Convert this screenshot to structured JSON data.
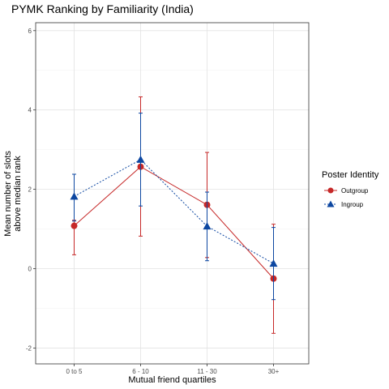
{
  "chart_data": {
    "type": "line",
    "title": "PYMK Ranking by Familiarity (India)",
    "xlabel": "Mutual friend quartiles",
    "ylabel_lines": [
      "Mean number of slots",
      "above median rank"
    ],
    "categories": [
      "0 to 5",
      "6 - 10",
      "11 - 30",
      "30+"
    ],
    "ylim": [
      -2.4,
      6.2
    ],
    "y_ticks": [
      -2,
      0,
      2,
      4,
      6
    ],
    "y_tick_labels": [
      "-2",
      "0",
      "2",
      "4",
      "6"
    ],
    "grid": true,
    "legend": {
      "title": "Poster Identity",
      "placement": "right"
    },
    "series": [
      {
        "name": "Outgroup",
        "color": "#c62828",
        "marker": "circle",
        "line_style": "solid",
        "values": [
          1.08,
          2.57,
          1.61,
          -0.25
        ],
        "error_low": [
          0.35,
          0.82,
          0.28,
          -1.63
        ],
        "error_high": [
          1.22,
          4.33,
          2.93,
          1.12
        ]
      },
      {
        "name": "Ingroup",
        "color": "#0d47a1",
        "marker": "triangle",
        "line_style": "dashed",
        "values": [
          1.82,
          2.75,
          1.07,
          0.13
        ],
        "error_low": [
          1.2,
          1.58,
          0.2,
          -0.78
        ],
        "error_high": [
          2.38,
          3.92,
          1.93,
          1.04
        ]
      }
    ]
  }
}
